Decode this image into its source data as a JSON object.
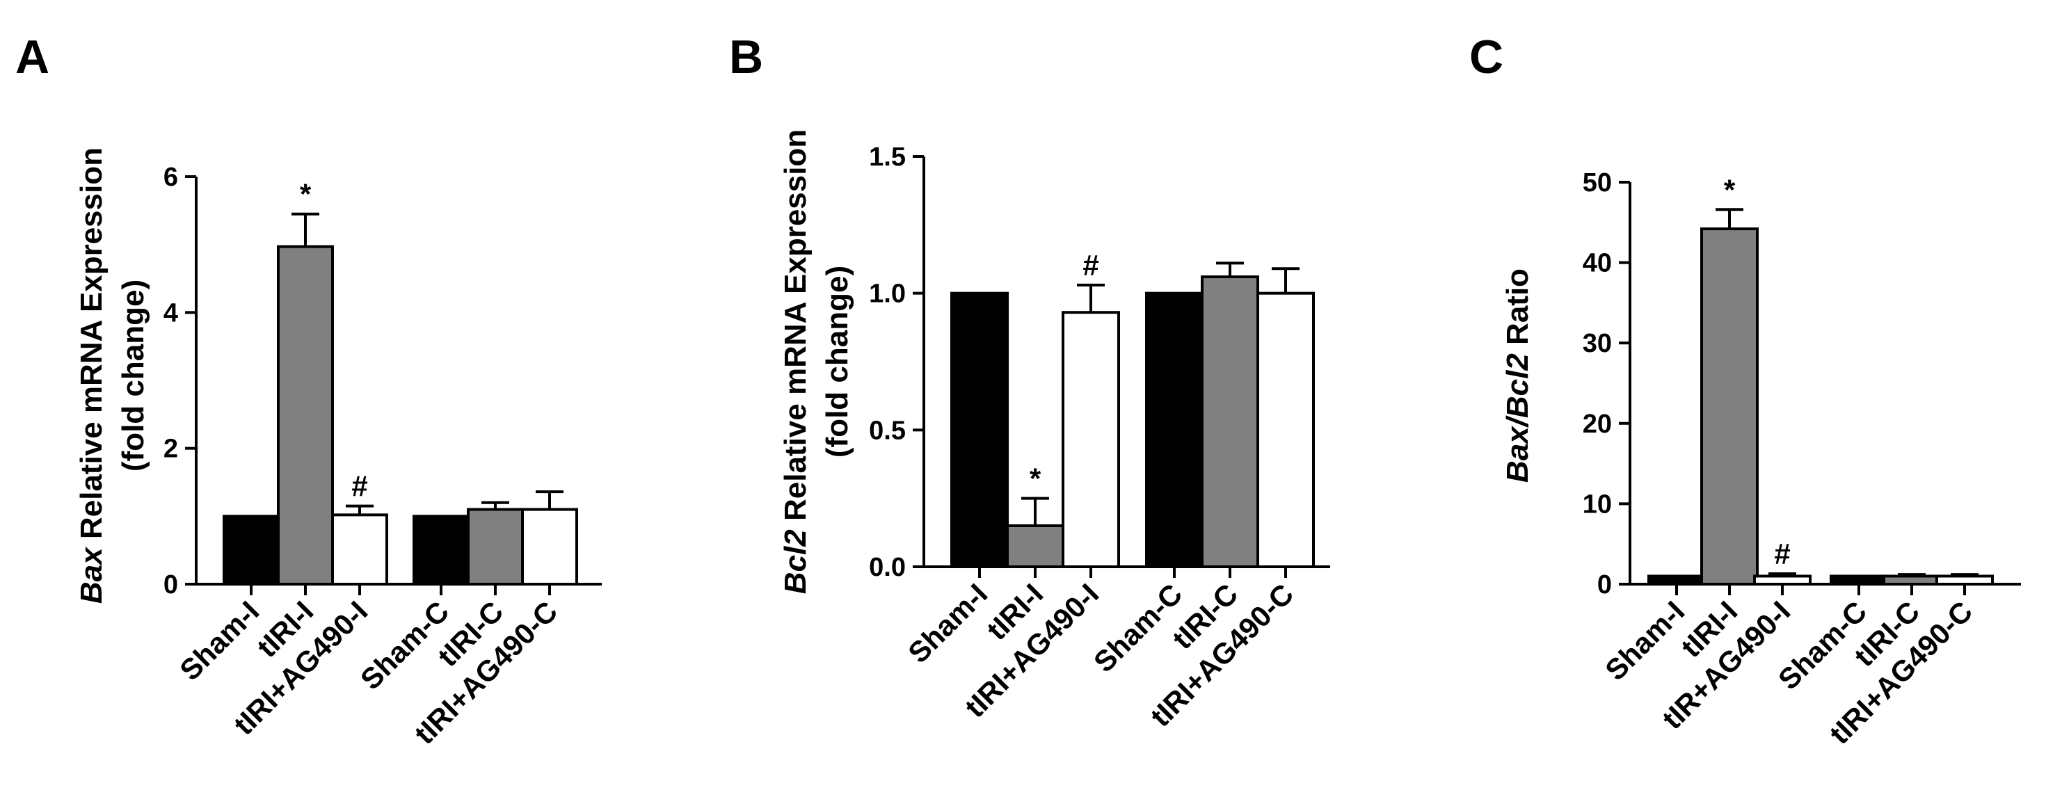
{
  "colors": {
    "sham": "#000000",
    "tiri": "#808080",
    "ag490": "#ffffff",
    "stroke": "#000000"
  },
  "chart_data": [
    {
      "type": "bar",
      "panel": "A",
      "ylabel_italic": "Bax",
      "ylabel_rest": " Relative mRNA Expression",
      "ylabel_line2": "(fold change)",
      "ylim": [
        0,
        6
      ],
      "yticks": [
        0,
        2,
        4,
        6
      ],
      "categories": [
        "Sham-I",
        "tIRI-I",
        "tIRI+AG490-I",
        "Sham-C",
        "tIRI-C",
        "tIRI+AG490-C"
      ],
      "values": [
        1.0,
        4.97,
        1.02,
        1.0,
        1.1,
        1.1
      ],
      "errors": [
        0.0,
        0.48,
        0.13,
        0.0,
        0.1,
        0.26
      ],
      "fills": [
        "sham",
        "tiri",
        "ag490",
        "sham",
        "tiri",
        "ag490"
      ],
      "annotations": [
        "",
        "*",
        "#",
        "",
        "",
        ""
      ]
    },
    {
      "type": "bar",
      "panel": "B",
      "ylabel_italic": "Bcl2",
      "ylabel_rest": " Relative mRNA Expression",
      "ylabel_line2": "(fold change)",
      "ylim": [
        0,
        1.5
      ],
      "yticks": [
        0.0,
        0.5,
        1.0,
        1.5
      ],
      "tick_labels": [
        "0.0",
        "0.5",
        "1.0",
        "1.5"
      ],
      "categories": [
        "Sham-I",
        "tIRI-I",
        "tIRI+AG490-I",
        "Sham-C",
        "tIRI-C",
        "tIRI+AG490-C"
      ],
      "values": [
        1.0,
        0.15,
        0.93,
        1.0,
        1.06,
        1.0
      ],
      "errors": [
        0.0,
        0.1,
        0.1,
        0.0,
        0.05,
        0.09
      ],
      "fills": [
        "sham",
        "tiri",
        "ag490",
        "sham",
        "tiri",
        "ag490"
      ],
      "annotations": [
        "",
        "*",
        "#",
        "",
        "",
        ""
      ]
    },
    {
      "type": "bar",
      "panel": "C",
      "ylabel_italic": "Bax/Bcl2",
      "ylabel_rest": " Ratio",
      "ylabel_line2": "",
      "ylim": [
        0,
        50
      ],
      "yticks": [
        0,
        10,
        20,
        30,
        40,
        50
      ],
      "categories": [
        "Sham-I",
        "tIRI-I",
        "tIR+AG490-I",
        "Sham-C",
        "tIRI-C",
        "tIRI+AG490-C"
      ],
      "values": [
        1.0,
        44.2,
        1.0,
        1.0,
        1.0,
        1.0
      ],
      "errors": [
        0.0,
        2.4,
        0.3,
        0.0,
        0.2,
        0.2
      ],
      "fills": [
        "sham",
        "tiri",
        "ag490",
        "sham",
        "tiri",
        "ag490"
      ],
      "annotations": [
        "",
        "*",
        "#",
        "",
        "",
        ""
      ]
    }
  ]
}
